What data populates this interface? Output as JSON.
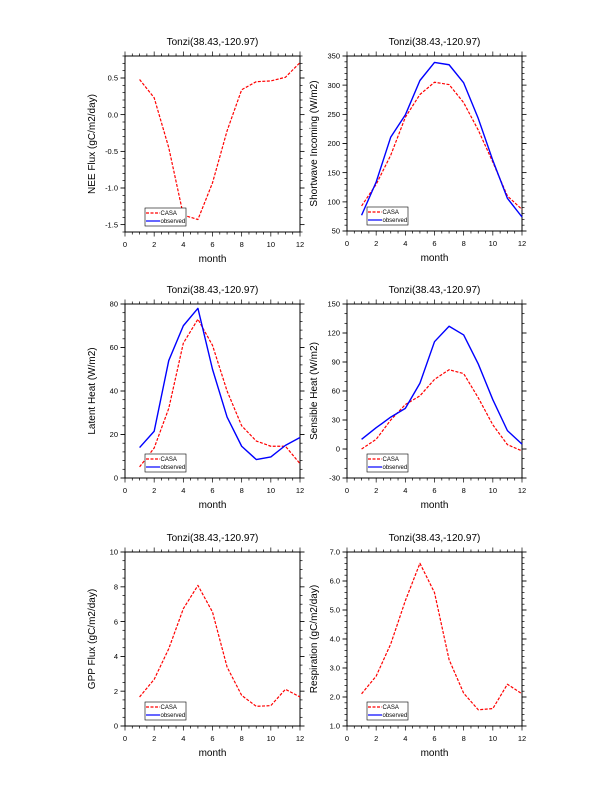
{
  "figure": {
    "legend_entries": [
      {
        "name": "CASA",
        "color": "#ff0000",
        "style": "dashed"
      },
      {
        "name": "observed",
        "color": "#0000ff",
        "style": "solid"
      }
    ]
  },
  "chart_data": [
    {
      "type": "line",
      "title": "Tonzi(38.43,-120.97)",
      "xlabel": "month",
      "ylabel": "NEE Flux (gC/m2/day)",
      "xlim": [
        0,
        12
      ],
      "ylim": [
        -1.6,
        0.8
      ],
      "xticks": [
        0,
        2,
        4,
        6,
        8,
        10,
        12
      ],
      "xtick_labels": [
        "0",
        "2",
        "4",
        "6",
        "8",
        "10",
        "12"
      ],
      "yticks": [
        -1.5,
        -1.0,
        -0.5,
        0.0,
        0.5
      ],
      "ytick_labels": [
        "-1.5",
        "-1.0",
        "-0.5",
        "0.0",
        "0.5"
      ],
      "x_minor_step": 0.5,
      "y_minor_step": 0.1,
      "legend_position": "bottom-left",
      "x": [
        1,
        2,
        3,
        4,
        5,
        6,
        7,
        8,
        9,
        10,
        11,
        12
      ],
      "series": [
        {
          "name": "CASA",
          "color": "#ff0000",
          "dashed": true,
          "values": [
            0.48,
            0.23,
            -0.45,
            -1.37,
            -1.43,
            -0.93,
            -0.22,
            0.34,
            0.45,
            0.46,
            0.51,
            0.71
          ]
        }
      ],
      "legend": [
        "CASA",
        "observed"
      ]
    },
    {
      "type": "line",
      "title": "Tonzi(38.43,-120.97)",
      "xlabel": "month",
      "ylabel": "Shortwave Incoming (W/m2)",
      "xlim": [
        0,
        12
      ],
      "ylim": [
        50,
        350
      ],
      "xticks": [
        0,
        2,
        4,
        6,
        8,
        10,
        12
      ],
      "xtick_labels": [
        "0",
        "2",
        "4",
        "6",
        "8",
        "10",
        "12"
      ],
      "yticks": [
        50,
        100,
        150,
        200,
        250,
        300,
        350
      ],
      "ytick_labels": [
        "50",
        "100",
        "150",
        "200",
        "250",
        "300",
        "350"
      ],
      "x_minor_step": 0.5,
      "y_minor_step": 10,
      "legend_position": "bottom-left",
      "x": [
        1,
        2,
        3,
        4,
        5,
        6,
        7,
        8,
        9,
        10,
        11,
        12
      ],
      "series": [
        {
          "name": "CASA",
          "color": "#ff0000",
          "dashed": true,
          "values": [
            93,
            130,
            180,
            245,
            284,
            305,
            301,
            270,
            223,
            168,
            110,
            87
          ]
        },
        {
          "name": "observed",
          "color": "#0000ff",
          "dashed": false,
          "values": [
            77,
            134,
            211,
            249,
            308,
            339,
            335,
            304,
            243,
            171,
            106,
            74
          ]
        }
      ],
      "legend": [
        "CASA",
        "observed"
      ]
    },
    {
      "type": "line",
      "title": "Tonzi(38.43,-120.97)",
      "xlabel": "month",
      "ylabel": "Latent Heat (W/m2)",
      "xlim": [
        0,
        12
      ],
      "ylim": [
        0,
        80
      ],
      "xticks": [
        0,
        2,
        4,
        6,
        8,
        10,
        12
      ],
      "xtick_labels": [
        "0",
        "2",
        "4",
        "6",
        "8",
        "10",
        "12"
      ],
      "yticks": [
        0,
        20,
        40,
        60,
        80
      ],
      "ytick_labels": [
        "0",
        "20",
        "40",
        "60",
        "80"
      ],
      "x_minor_step": 0.5,
      "y_minor_step": 4,
      "legend_position": "bottom-left",
      "x": [
        1,
        2,
        3,
        4,
        5,
        6,
        7,
        8,
        9,
        10,
        11,
        12
      ],
      "series": [
        {
          "name": "CASA",
          "color": "#ff0000",
          "dashed": true,
          "values": [
            5.1,
            13.8,
            32,
            62,
            73,
            61,
            40,
            24,
            17,
            14.6,
            14.6,
            6.6
          ]
        },
        {
          "name": "observed",
          "color": "#0000ff",
          "dashed": false,
          "values": [
            14,
            21.5,
            54,
            70,
            78,
            50,
            28,
            14.6,
            8.5,
            9.7,
            15,
            18.6
          ]
        }
      ],
      "legend": [
        "CASA",
        "observed"
      ]
    },
    {
      "type": "line",
      "title": "Tonzi(38.43,-120.97)",
      "xlabel": "month",
      "ylabel": "Sensible Heat (W/m2)",
      "xlim": [
        0,
        12
      ],
      "ylim": [
        -30,
        150
      ],
      "xticks": [
        0,
        2,
        4,
        6,
        8,
        10,
        12
      ],
      "xtick_labels": [
        "0",
        "2",
        "4",
        "6",
        "8",
        "10",
        "12"
      ],
      "yticks": [
        -30,
        0,
        30,
        60,
        90,
        120,
        150
      ],
      "ytick_labels": [
        "-30",
        "0",
        "30",
        "60",
        "90",
        "120",
        "150"
      ],
      "x_minor_step": 0.5,
      "y_minor_step": 10,
      "legend_position": "bottom-left",
      "x": [
        1,
        2,
        3,
        4,
        5,
        6,
        7,
        8,
        9,
        10,
        11,
        12
      ],
      "series": [
        {
          "name": "CASA",
          "color": "#ff0000",
          "dashed": true,
          "values": [
            0,
            10,
            30,
            46,
            55,
            72,
            82,
            78,
            53,
            25,
            4.5,
            -2
          ]
        },
        {
          "name": "observed",
          "color": "#0000ff",
          "dashed": false,
          "values": [
            10,
            22,
            33,
            42,
            68,
            111,
            127,
            118,
            88,
            51,
            19,
            5
          ]
        }
      ],
      "legend": [
        "CASA",
        "observed"
      ]
    },
    {
      "type": "line",
      "title": "Tonzi(38.43,-120.97)",
      "xlabel": "month",
      "ylabel": "GPP Flux (gC/m2/day)",
      "xlim": [
        0,
        12
      ],
      "ylim": [
        0,
        10
      ],
      "xticks": [
        0,
        2,
        4,
        6,
        8,
        10,
        12
      ],
      "xtick_labels": [
        "0",
        "2",
        "4",
        "6",
        "8",
        "10",
        "12"
      ],
      "yticks": [
        0,
        2,
        4,
        6,
        8,
        10
      ],
      "ytick_labels": [
        "0",
        "2",
        "4",
        "6",
        "8",
        "10"
      ],
      "x_minor_step": 0.5,
      "y_minor_step": 0.5,
      "legend_position": "bottom-left",
      "x": [
        1,
        2,
        3,
        4,
        5,
        6,
        7,
        8,
        9,
        10,
        11,
        12
      ],
      "series": [
        {
          "name": "CASA",
          "color": "#ff0000",
          "dashed": true,
          "values": [
            1.67,
            2.68,
            4.44,
            6.74,
            8.08,
            6.55,
            3.39,
            1.76,
            1.13,
            1.17,
            2.11,
            1.67
          ]
        }
      ],
      "legend": [
        "CASA",
        "observed"
      ]
    },
    {
      "type": "line",
      "title": "Tonzi(38.43,-120.97)",
      "xlabel": "month",
      "ylabel": "Respiration (gC/m2/day)",
      "xlim": [
        0,
        12
      ],
      "ylim": [
        1.0,
        7.0
      ],
      "xticks": [
        0,
        2,
        4,
        6,
        8,
        10,
        12
      ],
      "xtick_labels": [
        "0",
        "2",
        "4",
        "6",
        "8",
        "10",
        "12"
      ],
      "yticks": [
        1.0,
        2.0,
        3.0,
        4.0,
        5.0,
        6.0,
        7.0
      ],
      "ytick_labels": [
        "1.0",
        "2.0",
        "3.0",
        "4.0",
        "5.0",
        "6.0",
        "7.0"
      ],
      "x_minor_step": 0.5,
      "y_minor_step": 0.2,
      "legend_position": "bottom-left",
      "x": [
        1,
        2,
        3,
        4,
        5,
        6,
        7,
        8,
        9,
        10,
        11,
        12
      ],
      "series": [
        {
          "name": "CASA",
          "color": "#ff0000",
          "dashed": true,
          "values": [
            2.11,
            2.72,
            3.83,
            5.32,
            6.61,
            5.6,
            3.29,
            2.13,
            1.56,
            1.6,
            2.44,
            2.11
          ]
        }
      ],
      "legend": [
        "CASA",
        "observed"
      ]
    }
  ]
}
